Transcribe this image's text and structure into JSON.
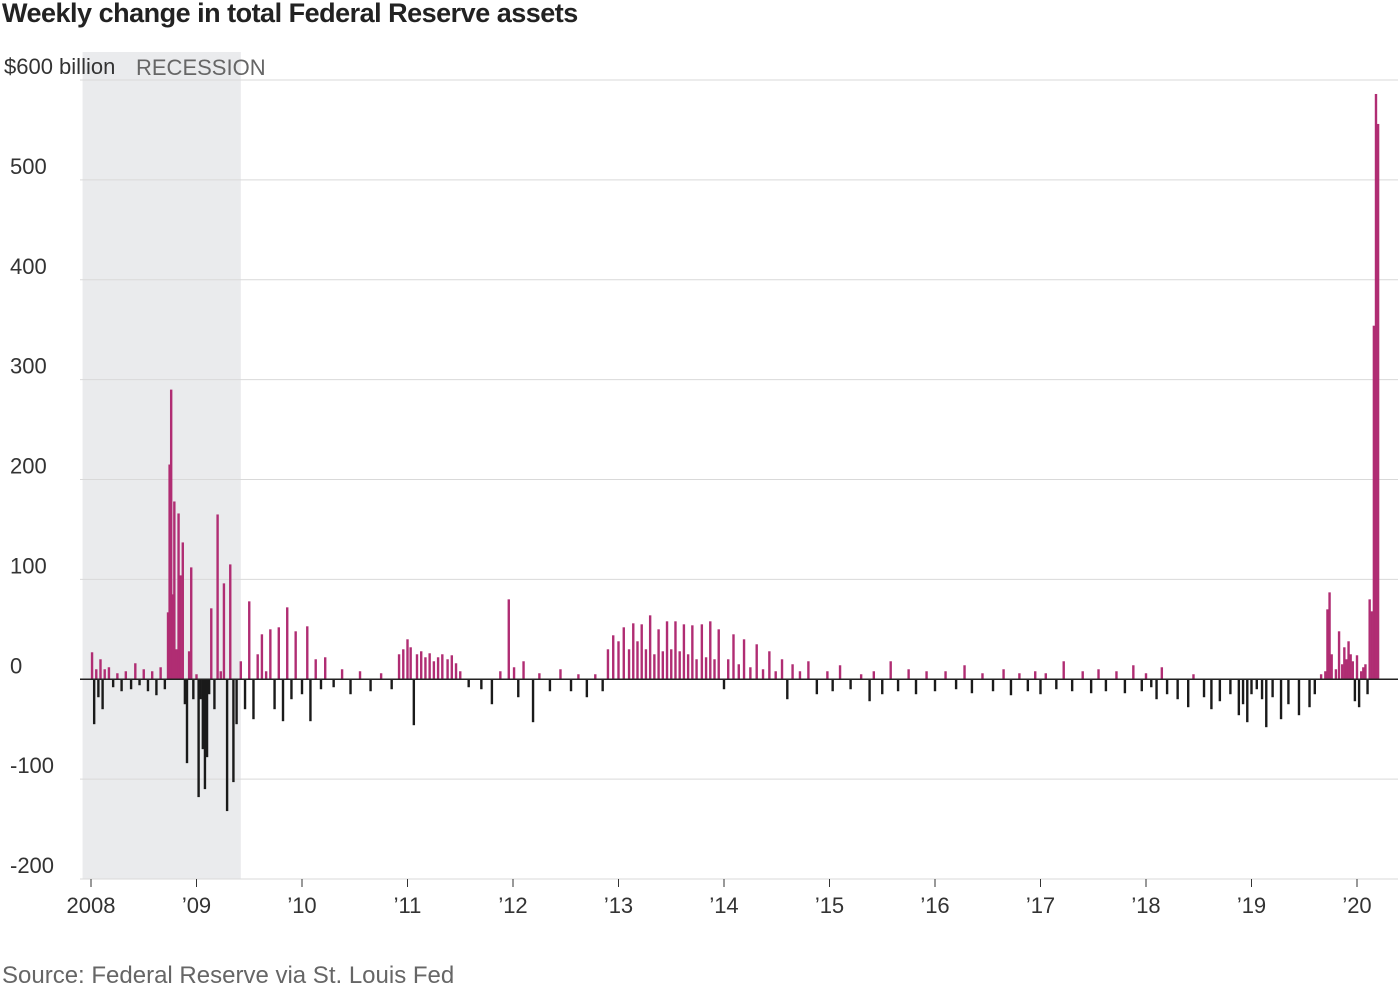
{
  "title": "Weekly change in total Federal Reserve assets",
  "source": "Source: Federal Reserve via St. Louis Fed",
  "colors": {
    "positive": "#b02d73",
    "negative": "#1a1a1a",
    "recession": "#eaebed",
    "grid": "#d9d9d9",
    "zero": "#222222"
  },
  "chart_data": {
    "type": "bar",
    "unit": "billion",
    "ylim": [
      -200,
      600
    ],
    "yticks": [
      {
        "value": 600,
        "label": "$600 billion"
      },
      {
        "value": 500,
        "label": "500"
      },
      {
        "value": 400,
        "label": "400"
      },
      {
        "value": 300,
        "label": "300"
      },
      {
        "value": 200,
        "label": "200"
      },
      {
        "value": 100,
        "label": "100"
      },
      {
        "value": 0,
        "label": "0"
      },
      {
        "value": -100,
        "label": "-100"
      },
      {
        "value": -200,
        "label": "-200"
      }
    ],
    "xlim": [
      2007.9,
      2020.3
    ],
    "xticks": [
      {
        "value": 2008,
        "label": "2008"
      },
      {
        "value": 2009,
        "label": "’09"
      },
      {
        "value": 2010,
        "label": "’10"
      },
      {
        "value": 2011,
        "label": "’11"
      },
      {
        "value": 2012,
        "label": "’12"
      },
      {
        "value": 2013,
        "label": "’13"
      },
      {
        "value": 2014,
        "label": "’14"
      },
      {
        "value": 2015,
        "label": "’15"
      },
      {
        "value": 2016,
        "label": "’16"
      },
      {
        "value": 2017,
        "label": "’17"
      },
      {
        "value": 2018,
        "label": "’18"
      },
      {
        "value": 2019,
        "label": "’19"
      },
      {
        "value": 2020,
        "label": "’20"
      }
    ],
    "recession": {
      "label": "RECESSION",
      "start": 2007.92,
      "end": 2009.42
    },
    "grid": true,
    "series": [
      {
        "points": [
          {
            "x": 2008.01,
            "y": 27
          },
          {
            "x": 2008.03,
            "y": -45
          },
          {
            "x": 2008.05,
            "y": 10
          },
          {
            "x": 2008.07,
            "y": -18
          },
          {
            "x": 2008.09,
            "y": 20
          },
          {
            "x": 2008.11,
            "y": -30
          },
          {
            "x": 2008.13,
            "y": 10
          },
          {
            "x": 2008.17,
            "y": 12
          },
          {
            "x": 2008.21,
            "y": -8
          },
          {
            "x": 2008.25,
            "y": 6
          },
          {
            "x": 2008.29,
            "y": -12
          },
          {
            "x": 2008.33,
            "y": 8
          },
          {
            "x": 2008.38,
            "y": -10
          },
          {
            "x": 2008.42,
            "y": 16
          },
          {
            "x": 2008.46,
            "y": -6
          },
          {
            "x": 2008.5,
            "y": 10
          },
          {
            "x": 2008.54,
            "y": -12
          },
          {
            "x": 2008.58,
            "y": 8
          },
          {
            "x": 2008.62,
            "y": -16
          },
          {
            "x": 2008.66,
            "y": 12
          },
          {
            "x": 2008.7,
            "y": -10
          },
          {
            "x": 2008.73,
            "y": 67
          },
          {
            "x": 2008.745,
            "y": 215
          },
          {
            "x": 2008.76,
            "y": 290
          },
          {
            "x": 2008.775,
            "y": 85
          },
          {
            "x": 2008.79,
            "y": 178
          },
          {
            "x": 2008.81,
            "y": 30
          },
          {
            "x": 2008.83,
            "y": 166
          },
          {
            "x": 2008.85,
            "y": 104
          },
          {
            "x": 2008.87,
            "y": 137
          },
          {
            "x": 2008.89,
            "y": -25
          },
          {
            "x": 2008.91,
            "y": -84
          },
          {
            "x": 2008.93,
            "y": 28
          },
          {
            "x": 2008.95,
            "y": 112
          },
          {
            "x": 2008.97,
            "y": -20
          },
          {
            "x": 2009.0,
            "y": 5
          },
          {
            "x": 2009.02,
            "y": -118
          },
          {
            "x": 2009.04,
            "y": -20
          },
          {
            "x": 2009.06,
            "y": -70
          },
          {
            "x": 2009.08,
            "y": -110
          },
          {
            "x": 2009.1,
            "y": -78
          },
          {
            "x": 2009.12,
            "y": -15
          },
          {
            "x": 2009.14,
            "y": 71
          },
          {
            "x": 2009.17,
            "y": -30
          },
          {
            "x": 2009.2,
            "y": 165
          },
          {
            "x": 2009.23,
            "y": 8
          },
          {
            "x": 2009.26,
            "y": 96
          },
          {
            "x": 2009.29,
            "y": -132
          },
          {
            "x": 2009.32,
            "y": 115
          },
          {
            "x": 2009.35,
            "y": -103
          },
          {
            "x": 2009.38,
            "y": -45
          },
          {
            "x": 2009.42,
            "y": 18
          },
          {
            "x": 2009.46,
            "y": -30
          },
          {
            "x": 2009.5,
            "y": 78
          },
          {
            "x": 2009.54,
            "y": -40
          },
          {
            "x": 2009.58,
            "y": 25
          },
          {
            "x": 2009.62,
            "y": 45
          },
          {
            "x": 2009.66,
            "y": 8
          },
          {
            "x": 2009.7,
            "y": 50
          },
          {
            "x": 2009.74,
            "y": -30
          },
          {
            "x": 2009.78,
            "y": 52
          },
          {
            "x": 2009.82,
            "y": -42
          },
          {
            "x": 2009.86,
            "y": 72
          },
          {
            "x": 2009.9,
            "y": -20
          },
          {
            "x": 2009.94,
            "y": 48
          },
          {
            "x": 2010.0,
            "y": -15
          },
          {
            "x": 2010.05,
            "y": 53
          },
          {
            "x": 2010.08,
            "y": -42
          },
          {
            "x": 2010.13,
            "y": 20
          },
          {
            "x": 2010.18,
            "y": -10
          },
          {
            "x": 2010.22,
            "y": 22
          },
          {
            "x": 2010.3,
            "y": -8
          },
          {
            "x": 2010.38,
            "y": 10
          },
          {
            "x": 2010.46,
            "y": -15
          },
          {
            "x": 2010.55,
            "y": 8
          },
          {
            "x": 2010.65,
            "y": -12
          },
          {
            "x": 2010.75,
            "y": 6
          },
          {
            "x": 2010.85,
            "y": -10
          },
          {
            "x": 2010.92,
            "y": 25
          },
          {
            "x": 2010.96,
            "y": 30
          },
          {
            "x": 2011.0,
            "y": 40
          },
          {
            "x": 2011.03,
            "y": 32
          },
          {
            "x": 2011.06,
            "y": -46
          },
          {
            "x": 2011.09,
            "y": 25
          },
          {
            "x": 2011.13,
            "y": 28
          },
          {
            "x": 2011.17,
            "y": 22
          },
          {
            "x": 2011.21,
            "y": 26
          },
          {
            "x": 2011.25,
            "y": 18
          },
          {
            "x": 2011.29,
            "y": 22
          },
          {
            "x": 2011.33,
            "y": 25
          },
          {
            "x": 2011.38,
            "y": 20
          },
          {
            "x": 2011.42,
            "y": 24
          },
          {
            "x": 2011.46,
            "y": 16
          },
          {
            "x": 2011.5,
            "y": 8
          },
          {
            "x": 2011.58,
            "y": -8
          },
          {
            "x": 2011.7,
            "y": -10
          },
          {
            "x": 2011.8,
            "y": -25
          },
          {
            "x": 2011.88,
            "y": 8
          },
          {
            "x": 2011.96,
            "y": 80
          },
          {
            "x": 2012.01,
            "y": 12
          },
          {
            "x": 2012.05,
            "y": -18
          },
          {
            "x": 2012.1,
            "y": 18
          },
          {
            "x": 2012.19,
            "y": -43
          },
          {
            "x": 2012.25,
            "y": 6
          },
          {
            "x": 2012.35,
            "y": -12
          },
          {
            "x": 2012.45,
            "y": 10
          },
          {
            "x": 2012.55,
            "y": -12
          },
          {
            "x": 2012.62,
            "y": 5
          },
          {
            "x": 2012.7,
            "y": -18
          },
          {
            "x": 2012.78,
            "y": 5
          },
          {
            "x": 2012.85,
            "y": -12
          },
          {
            "x": 2012.9,
            "y": 30
          },
          {
            "x": 2012.95,
            "y": 44
          },
          {
            "x": 2013.0,
            "y": 38
          },
          {
            "x": 2013.05,
            "y": 52
          },
          {
            "x": 2013.1,
            "y": 30
          },
          {
            "x": 2013.14,
            "y": 56
          },
          {
            "x": 2013.18,
            "y": 38
          },
          {
            "x": 2013.22,
            "y": 55
          },
          {
            "x": 2013.26,
            "y": 30
          },
          {
            "x": 2013.3,
            "y": 64
          },
          {
            "x": 2013.34,
            "y": 25
          },
          {
            "x": 2013.38,
            "y": 50
          },
          {
            "x": 2013.42,
            "y": 28
          },
          {
            "x": 2013.46,
            "y": 58
          },
          {
            "x": 2013.5,
            "y": 30
          },
          {
            "x": 2013.54,
            "y": 58
          },
          {
            "x": 2013.58,
            "y": 28
          },
          {
            "x": 2013.62,
            "y": 55
          },
          {
            "x": 2013.66,
            "y": 25
          },
          {
            "x": 2013.7,
            "y": 54
          },
          {
            "x": 2013.74,
            "y": 20
          },
          {
            "x": 2013.79,
            "y": 55
          },
          {
            "x": 2013.83,
            "y": 22
          },
          {
            "x": 2013.87,
            "y": 58
          },
          {
            "x": 2013.91,
            "y": 20
          },
          {
            "x": 2013.95,
            "y": 50
          },
          {
            "x": 2014.0,
            "y": -10
          },
          {
            "x": 2014.04,
            "y": 20
          },
          {
            "x": 2014.09,
            "y": 45
          },
          {
            "x": 2014.14,
            "y": 15
          },
          {
            "x": 2014.19,
            "y": 40
          },
          {
            "x": 2014.25,
            "y": 12
          },
          {
            "x": 2014.31,
            "y": 35
          },
          {
            "x": 2014.37,
            "y": 10
          },
          {
            "x": 2014.43,
            "y": 28
          },
          {
            "x": 2014.49,
            "y": 8
          },
          {
            "x": 2014.55,
            "y": 20
          },
          {
            "x": 2014.6,
            "y": -20
          },
          {
            "x": 2014.65,
            "y": 15
          },
          {
            "x": 2014.72,
            "y": 8
          },
          {
            "x": 2014.8,
            "y": 18
          },
          {
            "x": 2014.88,
            "y": -15
          },
          {
            "x": 2014.98,
            "y": 8
          },
          {
            "x": 2015.03,
            "y": -12
          },
          {
            "x": 2015.1,
            "y": 14
          },
          {
            "x": 2015.2,
            "y": -10
          },
          {
            "x": 2015.3,
            "y": 5
          },
          {
            "x": 2015.38,
            "y": -22
          },
          {
            "x": 2015.42,
            "y": 8
          },
          {
            "x": 2015.5,
            "y": -15
          },
          {
            "x": 2015.58,
            "y": 18
          },
          {
            "x": 2015.65,
            "y": -12
          },
          {
            "x": 2015.75,
            "y": 10
          },
          {
            "x": 2015.82,
            "y": -15
          },
          {
            "x": 2015.92,
            "y": 8
          },
          {
            "x": 2016.0,
            "y": -12
          },
          {
            "x": 2016.1,
            "y": 8
          },
          {
            "x": 2016.2,
            "y": -10
          },
          {
            "x": 2016.28,
            "y": 14
          },
          {
            "x": 2016.35,
            "y": -14
          },
          {
            "x": 2016.45,
            "y": 6
          },
          {
            "x": 2016.55,
            "y": -12
          },
          {
            "x": 2016.65,
            "y": 10
          },
          {
            "x": 2016.72,
            "y": -16
          },
          {
            "x": 2016.8,
            "y": 6
          },
          {
            "x": 2016.88,
            "y": -12
          },
          {
            "x": 2016.95,
            "y": 8
          },
          {
            "x": 2017.0,
            "y": -15
          },
          {
            "x": 2017.05,
            "y": 6
          },
          {
            "x": 2017.15,
            "y": -10
          },
          {
            "x": 2017.22,
            "y": 18
          },
          {
            "x": 2017.3,
            "y": -12
          },
          {
            "x": 2017.4,
            "y": 8
          },
          {
            "x": 2017.48,
            "y": -14
          },
          {
            "x": 2017.55,
            "y": 10
          },
          {
            "x": 2017.62,
            "y": -12
          },
          {
            "x": 2017.72,
            "y": 8
          },
          {
            "x": 2017.8,
            "y": -14
          },
          {
            "x": 2017.88,
            "y": 14
          },
          {
            "x": 2017.96,
            "y": -12
          },
          {
            "x": 2018.0,
            "y": 6
          },
          {
            "x": 2018.05,
            "y": -8
          },
          {
            "x": 2018.1,
            "y": -20
          },
          {
            "x": 2018.15,
            "y": 12
          },
          {
            "x": 2018.2,
            "y": -15
          },
          {
            "x": 2018.3,
            "y": -20
          },
          {
            "x": 2018.4,
            "y": -28
          },
          {
            "x": 2018.45,
            "y": 5
          },
          {
            "x": 2018.55,
            "y": -18
          },
          {
            "x": 2018.62,
            "y": -30
          },
          {
            "x": 2018.7,
            "y": -22
          },
          {
            "x": 2018.8,
            "y": -15
          },
          {
            "x": 2018.88,
            "y": -36
          },
          {
            "x": 2018.92,
            "y": -25
          },
          {
            "x": 2018.96,
            "y": -43
          },
          {
            "x": 2019.0,
            "y": -15
          },
          {
            "x": 2019.05,
            "y": -10
          },
          {
            "x": 2019.1,
            "y": -20
          },
          {
            "x": 2019.14,
            "y": -48
          },
          {
            "x": 2019.2,
            "y": -18
          },
          {
            "x": 2019.28,
            "y": -40
          },
          {
            "x": 2019.35,
            "y": -25
          },
          {
            "x": 2019.45,
            "y": -36
          },
          {
            "x": 2019.55,
            "y": -28
          },
          {
            "x": 2019.6,
            "y": -15
          },
          {
            "x": 2019.66,
            "y": 5
          },
          {
            "x": 2019.7,
            "y": 8
          },
          {
            "x": 2019.72,
            "y": 70
          },
          {
            "x": 2019.74,
            "y": 87
          },
          {
            "x": 2019.76,
            "y": 25
          },
          {
            "x": 2019.8,
            "y": 10
          },
          {
            "x": 2019.83,
            "y": 48
          },
          {
            "x": 2019.86,
            "y": 15
          },
          {
            "x": 2019.88,
            "y": 32
          },
          {
            "x": 2019.9,
            "y": 20
          },
          {
            "x": 2019.92,
            "y": 38
          },
          {
            "x": 2019.94,
            "y": 25
          },
          {
            "x": 2019.96,
            "y": 18
          },
          {
            "x": 2019.98,
            "y": -22
          },
          {
            "x": 2020.0,
            "y": 24
          },
          {
            "x": 2020.02,
            "y": -28
          },
          {
            "x": 2020.04,
            "y": 8
          },
          {
            "x": 2020.06,
            "y": 12
          },
          {
            "x": 2020.08,
            "y": 15
          },
          {
            "x": 2020.1,
            "y": -15
          },
          {
            "x": 2020.12,
            "y": 80
          },
          {
            "x": 2020.14,
            "y": 68
          },
          {
            "x": 2020.16,
            "y": 354
          },
          {
            "x": 2020.18,
            "y": 586
          },
          {
            "x": 2020.2,
            "y": 556
          }
        ]
      }
    ]
  }
}
